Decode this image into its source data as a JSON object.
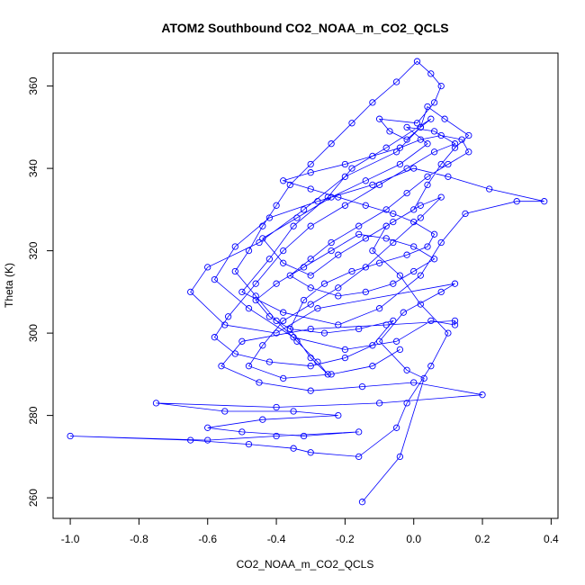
{
  "chart_data": {
    "type": "scatter",
    "title": "ATOM2 Southbound CO2_NOAA_m_CO2_QCLS",
    "xlabel": "CO2_NOAA_m_CO2_QCLS",
    "ylabel": "Theta (K)",
    "xlim": [
      -1.05,
      0.42
    ],
    "ylim": [
      255,
      368
    ],
    "xticks": [
      -1.0,
      -0.8,
      -0.6,
      -0.4,
      -0.2,
      0.0,
      0.2,
      0.4
    ],
    "xtick_labels": [
      "-1.0",
      "-0.8",
      "-0.6",
      "-0.4",
      "-0.2",
      "0.0",
      "0.2",
      "0.4"
    ],
    "yticks": [
      260,
      280,
      300,
      320,
      340,
      360
    ],
    "ytick_labels": [
      "260",
      "280",
      "300",
      "320",
      "340",
      "360"
    ],
    "series": [
      {
        "name": "CO2_NOAA_m_CO2_QCLS",
        "color": "#0000ff",
        "marker": "open-circle",
        "line": true,
        "points": [
          [
            -0.15,
            259
          ],
          [
            -0.04,
            270
          ],
          [
            0.03,
            289
          ],
          [
            -0.02,
            291
          ],
          [
            -0.1,
            298
          ],
          [
            -0.03,
            305
          ],
          [
            0.08,
            310
          ],
          [
            0.12,
            312
          ],
          [
            -0.28,
            306
          ],
          [
            -0.4,
            300
          ],
          [
            -0.55,
            302
          ],
          [
            -0.65,
            310
          ],
          [
            -0.6,
            316
          ],
          [
            -0.45,
            322
          ],
          [
            -0.32,
            330
          ],
          [
            -0.2,
            338
          ],
          [
            -0.05,
            344
          ],
          [
            0.02,
            350
          ],
          [
            0.05,
            352
          ],
          [
            -0.08,
            345
          ],
          [
            -0.18,
            340
          ],
          [
            -0.25,
            333
          ],
          [
            -0.35,
            326
          ],
          [
            -0.42,
            318
          ],
          [
            -0.5,
            310
          ],
          [
            -0.38,
            305
          ],
          [
            -0.22,
            302
          ],
          [
            -0.1,
            306
          ],
          [
            0.02,
            314
          ],
          [
            0.08,
            322
          ],
          [
            0.15,
            329
          ],
          [
            0.3,
            332
          ],
          [
            0.38,
            332
          ],
          [
            0.22,
            335
          ],
          [
            0.1,
            338
          ],
          [
            0.0,
            340
          ],
          [
            -0.12,
            336
          ],
          [
            -0.28,
            332
          ],
          [
            -0.42,
            328
          ],
          [
            -0.52,
            321
          ],
          [
            -0.58,
            313
          ],
          [
            -0.48,
            306
          ],
          [
            -0.35,
            299
          ],
          [
            -0.2,
            296
          ],
          [
            -0.05,
            298
          ],
          [
            0.05,
            303
          ],
          [
            0.12,
            302
          ],
          [
            0.12,
            303
          ],
          [
            -0.08,
            302
          ],
          [
            -0.3,
            301
          ],
          [
            -0.5,
            298
          ],
          [
            -0.56,
            292
          ],
          [
            -0.45,
            288
          ],
          [
            -0.3,
            286
          ],
          [
            -0.15,
            287
          ],
          [
            0.0,
            288
          ],
          [
            0.2,
            285
          ],
          [
            -0.1,
            283
          ],
          [
            -0.4,
            282
          ],
          [
            -0.75,
            283
          ],
          [
            -0.55,
            281
          ],
          [
            -0.35,
            281
          ],
          [
            -0.22,
            280
          ],
          [
            -0.44,
            279
          ],
          [
            -0.6,
            277
          ],
          [
            -0.5,
            276
          ],
          [
            -0.32,
            275
          ],
          [
            -0.16,
            276
          ],
          [
            -0.4,
            275
          ],
          [
            -0.6,
            274
          ],
          [
            -1.0,
            275
          ],
          [
            -0.65,
            274
          ],
          [
            -0.48,
            273
          ],
          [
            -0.35,
            272
          ],
          [
            -0.3,
            271
          ],
          [
            -0.16,
            270
          ],
          [
            -0.05,
            277
          ],
          [
            -0.02,
            283
          ],
          [
            0.05,
            292
          ],
          [
            0.1,
            300
          ],
          [
            0.02,
            307
          ],
          [
            -0.04,
            314
          ],
          [
            -0.12,
            320
          ],
          [
            -0.08,
            326
          ],
          [
            0.0,
            330
          ],
          [
            0.04,
            336
          ],
          [
            0.08,
            341
          ],
          [
            0.12,
            345
          ],
          [
            0.16,
            348
          ],
          [
            0.09,
            352
          ],
          [
            0.04,
            355
          ],
          [
            0.02,
            350
          ],
          [
            -0.02,
            347
          ],
          [
            -0.07,
            349
          ],
          [
            -0.1,
            352
          ],
          [
            0.01,
            351
          ],
          [
            0.06,
            356
          ],
          [
            0.08,
            360
          ],
          [
            0.05,
            363
          ],
          [
            0.01,
            366
          ],
          [
            -0.05,
            361
          ],
          [
            -0.12,
            356
          ],
          [
            -0.18,
            351
          ],
          [
            -0.24,
            346
          ],
          [
            -0.3,
            341
          ],
          [
            -0.36,
            336
          ],
          [
            -0.4,
            331
          ],
          [
            -0.44,
            326
          ],
          [
            -0.48,
            320
          ],
          [
            -0.52,
            315
          ],
          [
            -0.46,
            309
          ],
          [
            -0.4,
            303
          ],
          [
            -0.34,
            298
          ],
          [
            -0.28,
            293
          ],
          [
            -0.25,
            290
          ],
          [
            -0.3,
            294
          ],
          [
            -0.36,
            301
          ],
          [
            -0.32,
            308
          ],
          [
            -0.26,
            312
          ],
          [
            -0.18,
            315
          ],
          [
            -0.1,
            317
          ],
          [
            -0.02,
            319
          ],
          [
            0.04,
            321
          ],
          [
            0.06,
            324
          ],
          [
            0.0,
            327
          ],
          [
            -0.06,
            329
          ],
          [
            -0.14,
            331
          ],
          [
            -0.22,
            333
          ],
          [
            -0.3,
            335
          ],
          [
            -0.38,
            337
          ],
          [
            -0.3,
            339
          ],
          [
            -0.2,
            341
          ],
          [
            -0.12,
            343
          ],
          [
            -0.04,
            345
          ],
          [
            0.02,
            347
          ],
          [
            0.08,
            348
          ],
          [
            0.14,
            347
          ],
          [
            0.16,
            344
          ],
          [
            0.1,
            341
          ],
          [
            0.04,
            338
          ],
          [
            -0.02,
            334
          ],
          [
            -0.08,
            330
          ],
          [
            -0.16,
            326
          ],
          [
            -0.24,
            322
          ],
          [
            -0.3,
            318
          ],
          [
            -0.36,
            314
          ],
          [
            -0.3,
            311
          ],
          [
            -0.22,
            309
          ],
          [
            -0.14,
            310
          ],
          [
            -0.06,
            312
          ],
          [
            0.0,
            315
          ],
          [
            0.06,
            318
          ],
          [
            0.0,
            321
          ],
          [
            -0.08,
            323
          ],
          [
            -0.16,
            324
          ],
          [
            -0.24,
            320
          ],
          [
            -0.32,
            316
          ],
          [
            -0.4,
            312
          ],
          [
            -0.46,
            308
          ],
          [
            -0.42,
            304
          ],
          [
            -0.36,
            301
          ],
          [
            -0.26,
            300
          ],
          [
            -0.16,
            301
          ],
          [
            -0.06,
            303
          ],
          [
            -0.12,
            297
          ],
          [
            -0.2,
            294
          ],
          [
            -0.3,
            292
          ],
          [
            -0.42,
            293
          ],
          [
            -0.52,
            295
          ],
          [
            -0.58,
            299
          ],
          [
            -0.54,
            304
          ],
          [
            -0.46,
            312
          ],
          [
            -0.38,
            320
          ],
          [
            -0.3,
            326
          ],
          [
            -0.2,
            331
          ],
          [
            -0.1,
            336
          ],
          [
            -0.02,
            340
          ],
          [
            0.06,
            344
          ],
          [
            0.12,
            346
          ],
          [
            0.06,
            349
          ],
          [
            -0.02,
            350
          ],
          [
            0.04,
            346
          ],
          [
            -0.04,
            341
          ],
          [
            -0.14,
            337
          ],
          [
            -0.24,
            333
          ],
          [
            -0.34,
            328
          ],
          [
            -0.44,
            323
          ],
          [
            -0.38,
            317
          ],
          [
            -0.3,
            314
          ],
          [
            -0.22,
            319
          ],
          [
            -0.14,
            323
          ],
          [
            -0.06,
            327
          ],
          [
            0.02,
            331
          ],
          [
            0.08,
            333
          ],
          [
            0.02,
            328
          ],
          [
            -0.06,
            322
          ],
          [
            -0.14,
            316
          ],
          [
            -0.22,
            311
          ],
          [
            -0.3,
            307
          ],
          [
            -0.38,
            303
          ],
          [
            -0.44,
            297
          ],
          [
            -0.48,
            292
          ],
          [
            -0.38,
            289
          ],
          [
            -0.24,
            290
          ],
          [
            -0.12,
            292
          ],
          [
            -0.04,
            296
          ]
        ]
      }
    ]
  }
}
